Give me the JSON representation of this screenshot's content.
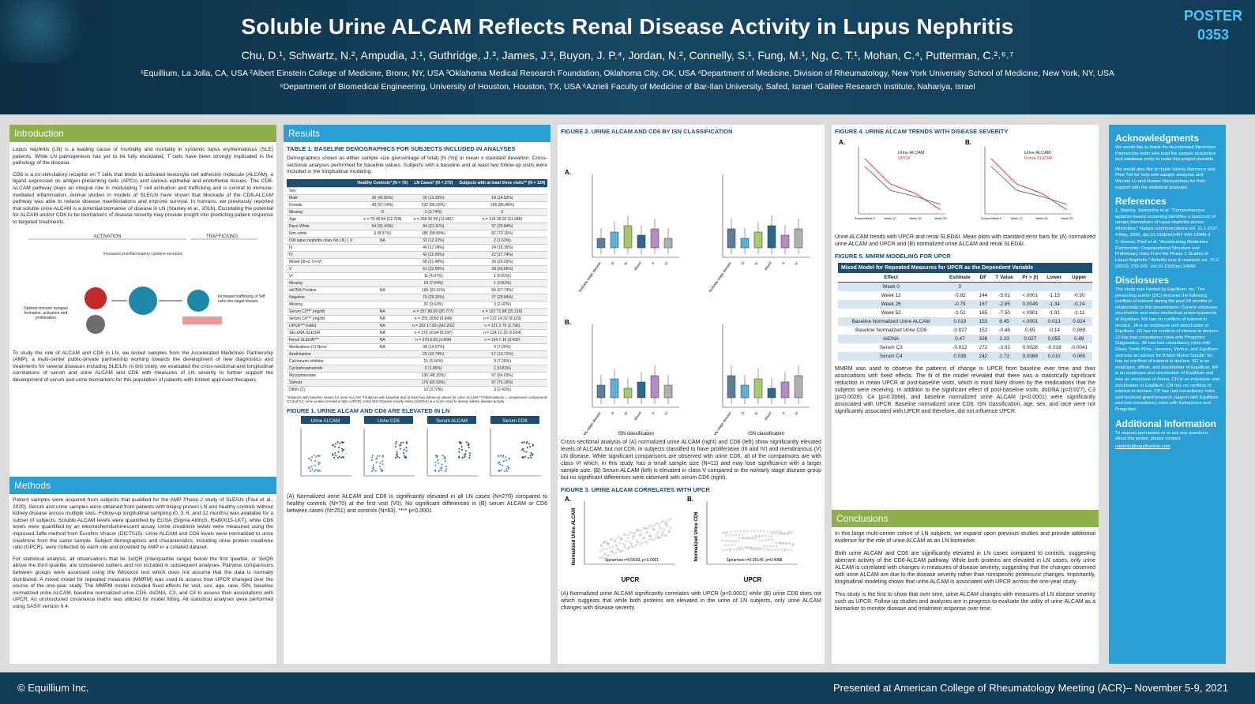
{
  "header": {
    "title": "Soluble Urine ALCAM Reflects Renal Disease Activity in Lupus Nephritis",
    "authors": "Chu, D.¹, Schwartz, N.², Ampudia, J.¹, Guthridge, J.³, James, J.³, Buyon, J. P.⁴, Jordan, N.², Connelly, S.¹, Fung, M.¹, Ng, C. T.¹, Mohan, C.⁴, Putterman, C.²˒⁶˒⁷",
    "affil_line1": "¹Equillium, La Jolla, CA, USA   ²Albert Einstein College of Medicine, Bronx, NY, USA   ³Oklahoma Medical Research Foundation, Oklahoma City, OK, USA   ⁴Department of Medicine, Division of Rheumatology, New York University School of Medicine, New York, NY, USA",
    "affil_line2": "⁵Department of Biomedical Engineering, University of Houston, Houston, TX, USA   ⁶Azrieli Faculty of Medicine of Bar-Ilan University, Safed, Israel   ⁷Galilee Research Institute, Nahariya, Israel",
    "poster_label": "POSTER",
    "poster_number": "0353"
  },
  "intro": {
    "heading": "Introduction",
    "p1": "Lupus nephritis (LN) is a leading cause of morbidity and mortality in systemic lupus erythematosus (SLE) patients. While LN pathogenesis has yet to be fully elucidated, T cells have been strongly implicated in the pathology of the disease.",
    "p2": "CD6 is a co-stimulatory receptor on T cells that binds to activated leukocyte cell adhesion molecule (ALCAM), a ligand expressed on antigen presenting cells (APCs) and various epithelial and endothelial tissues. The CD6-ALCAM pathway plays an integral role in modulating T cell activation and trafficking and is central to immune-mediated inflammation. Animal studies in models of SLE/LN have shown that blockade of the CD6-ALCAM pathway was able to reduce disease manifestations and improve survival. In humans, we previously reported that soluble urine ALCAM is a potential biomarker of disease in LN (Stanley et al., 2016). Elucidating the potential for ALCAM and/or CD6 to be biomarkers of disease severity may provide insight into predicting patient response to targeted treatments.",
    "diagram_activation": "ACTIVATION",
    "diagram_trafficking": "TRAFFICKING",
    "diagram_cytokine": "Increased proinflammatory cytokine secretion",
    "diagram_optimal": "Optimal immune synapse formation, activation and proliferation",
    "diagram_trafficking_text": "Increased trafficking of Teff cells into target tissues",
    "p3": "To study the role of ALCAM and CD6 in LN, we tested samples from the Accelerated Medicines Partnership (AMP), a multi-center public-private partnership working towards the development of new diagnostics and treatments for several diseases including SLE/LN. In this study, we evaluated the cross-sectional and longitudinal correlations of serum and urine ALCAM and CD6 with measures of LN severity to further support the development of serum and urine biomarkers for this population of patients with limited approved therapies."
  },
  "methods": {
    "heading": "Methods",
    "p1": "Patient samples were acquired from subjects that qualified for the AMP Phase 2 study of SLE/LN (Paul et al., 2020). Serum and urine samples were obtained from patients with biopsy proven LN and healthy controls without kidney disease across multiple sites. Follow-up longitudinal sampling (0, 3, 6, and 12 months) was available for a subset of subjects. Soluble ALCAM levels were quantified by ELISA (Sigma Aldrich, RAB0013-1KT), while CD6 levels were quantified by an electrochemiluminescent assay. Urine creatinine levels were measured using the improved Jaffe method from Eurofins Viracor (DICT015). Urine ALCAM and CD6 levels were normalized to urine creatinine from the same sample. Subject demographics and characteristics, including urine protein creatinine ratio (UPCR), were collected by each site and provided by AMP in a collated dataset.",
    "p2": "For statistical analysis, all observations that lie 3xIQR (interquartile range) below the first quartile, or 3xIQR above the third quartile, are considered outliers and not included in subsequent analyses. Pairwise comparisons between groups were assessed using the Wilcoxon test which does not assume that the data is normally distributed. A mixed model for repeated measures (MMRM) was used to assess how UPCR changed over the course of the one-year study. The MMRM model included fixed effects for visit, sex, age, race, ISN, baseline normalized urine ALCAM, baseline normalized urine CD6, dsDNA, C3, and C4 to assess their associations with UPCR. An unstructured covariance matrix was utilized for model fitting. All statistical analyses were performed using SAS® version 9.4."
  },
  "results": {
    "heading": "Results",
    "table1_title": "TABLE 1. BASELINE DEMOGRAPHICS FOR SUBJECTS INCLUDED IN ANALYSES",
    "table1_caption": "Demographics shown as either sample size (percentage of total) [N (%)] or mean ± standard deviation. Cross-sectional analyses performed for baseline values. Subjects with a baseline and at least two follow-up visits were included in the longitudinal modeling.",
    "table1_headers": [
      "",
      "Healthy Controls* (N = 70)",
      "LN Cases* (N = 270)",
      "Subjects with at least three visits** (N = 124)"
    ],
    "table1_rows": [
      [
        "Sex",
        "",
        "",
        ""
      ],
      [
        "Male",
        "30 (42.86%)",
        "36 (13.33%)",
        "18 (14.52%)"
      ],
      [
        "Female",
        "40 (57.14%)",
        "232 (85.93%)",
        "106 (85.48%)"
      ],
      [
        "Missing",
        "0",
        "2 (0.74%)",
        "0"
      ],
      [
        "Age",
        "n = 70  46.64 (12.218)",
        "n = 268  36.99 (11.981)",
        "n = 124  36.02 (11.048)"
      ],
      [
        "Race  White",
        "64 (91.43%)",
        "84 (31.11%)",
        "37 (29.84%)"
      ],
      [
        "Non-white",
        "6 (8.57%)",
        "186 (68.89%)",
        "87 (70.16%)"
      ],
      [
        "ISN lupus nephritis class  No LN, I, II",
        "NA",
        "33 (12.22%)",
        "2 (1.61%)"
      ],
      [
        "III",
        "",
        "46 (17.04%)",
        "24 (19.35%)"
      ],
      [
        "IV",
        "",
        "42 (15.56%)",
        "22 (17.74%)"
      ],
      [
        "Mixed (III+V, IV+V)",
        "",
        "58 (21.48%)",
        "36 (29.03%)"
      ],
      [
        "V",
        "",
        "61 (22.59%)",
        "38 (30.65%)"
      ],
      [
        "VI",
        "",
        "11 (4.07%)",
        "1 (0.81%)"
      ],
      [
        "Missing",
        "",
        "19 (7.04%)",
        "1 (0.81%)"
      ],
      [
        "dsDNA  Positive",
        "NA",
        "165 (61.11%)",
        "84 (67.74%)"
      ],
      [
        "Negative",
        "",
        "79 (29.26%)",
        "37 (29.84%)"
      ],
      [
        "Missing",
        "",
        "26 (9.63%)",
        "3 (2.42%)"
      ],
      [
        "Serum C3*** (mg/dl)",
        "NA",
        "n = 257  80.06 (25.777)",
        "n = 122  72.88 (25.218)"
      ],
      [
        "Serum C4*** (mg/dl)",
        "NA",
        "n = 255  15.80 (9.849)",
        "n = 122  14.22 (9.120)"
      ],
      [
        "UPCR*** (ratio)",
        "NA",
        "n = 262  17.83 (242.202)",
        "n = 121  2.76 (2.796)"
      ],
      [
        "SELENA-SLEDAI",
        "NA",
        "n = 270  10.94 (6.037)",
        "n = 124  12.16 (5.934)"
      ],
      [
        "Renal SLEDAI***",
        "NA",
        "n = 270  6.65 (3.604)",
        "n = 124  7.16 (3.432)"
      ],
      [
        "Medications (1)  None",
        "NA",
        "38 (14.07%)",
        "9 (7.26%)"
      ],
      [
        "Azathioprine",
        "",
        "29 (10.74%)",
        "17 (13.71%)"
      ],
      [
        "Calcineurin inhibitor",
        "",
        "15 (5.56%)",
        "9 (7.26%)"
      ],
      [
        "Cyclophosphamide",
        "",
        "5 (1.85%)",
        "1 (0.81%)"
      ],
      [
        "Mycophenolate",
        "",
        "130 (48.15%)",
        "67 (54.03%)"
      ],
      [
        "Steroid",
        "",
        "178 (65.93%)",
        "87 (70.16%)"
      ],
      [
        "Other (2)",
        "",
        "10 (3.70%)",
        "3 (2.42%)"
      ]
    ],
    "table1_footnote": "*Subjects with baseline values for urine ALCAM  **Subjects with baseline and at least two follow-up values for urine ALCAM  ***Abbreviations = complement components C3 and C4, urine protein creatinine ratio (UPCR), renal SLE Disease Activity Index (SLEDAI) is a score used to assess kidney disease activity.",
    "fig1_title": "FIGURE 1. URINE ALCAM AND CD6 ARE ELEVATED IN LN",
    "fig1_labels": [
      "Urine ALCAM",
      "Urine CD6",
      "Serum ALCAM",
      "Serum CD6"
    ],
    "fig1_caption": "(A) Normalized urine ALCAM and CD6 is significantly elevated in all LN cases (N=270) compared to healthy controls (N=70) at the first visit (V0). No significant differences in (B) serum ALCAM or CD6 between cases (N=251) and controls (N=63). **** p<0.0001",
    "fig2_title": "FIGURE 2. URINE ALCAM AND CD6 BY ISN CLASSIFICATION",
    "fig2_caption": "Cross-sectional analysis of (A) normalized urine ALCAM (right) and CD6 (left) show significantly elevated levels of ALCAM, but not CD6, in subjects classified to have proliferative (III and IV) and membranous (V) LN disease. While significant comparisons are observed with urine CD6, all of the comparisons are with class VI which, in this study, has a small sample size (N=11) and may lose significance with a larger sample size. (B) Serum ALCAM (left) is elevated in class V compared to the no/early stage disease group but no significant differences were observed with serum CD6 (right).",
    "fig2_xlabel": "ISN classification",
    "fig2_categories": [
      "No/Early stage disease",
      "III",
      "IV",
      "Mixed",
      "V",
      "VI"
    ],
    "fig3_title": "FIGURE 3. URINE ALCAM CORRELATES WITH UPCR",
    "fig3_caption": "(A) Normalized urine ALCAM significantly correlates with UPCR (p<0.0001) while (B) urine CD6 does not which suggests that while both proteins are elevated in the urine of LN subjects, only urine ALCAM changes with disease severity.",
    "fig3a_stat": "Spearman r=0.5603, p<0.0001",
    "fig3b_stat": "Spearman r=0.05146, p=0.4088",
    "fig3_xlabel": "UPCR",
    "fig3a_ylabel": "Normalized Urine ALCAM",
    "fig3b_ylabel": "Normalized Urine CD6",
    "fig4_title": "FIGURE 4. URINE ALCAM TRENDS WITH DISEASE SEVERITY",
    "fig4a_legend": [
      "Urine ALCAM",
      "UPCR"
    ],
    "fig4b_legend": [
      "Urine ALCAM",
      "Renal SLEDAI"
    ],
    "fig4_x": [
      "Screen/Week 0",
      "Week 12",
      "Week 26",
      "Week 52"
    ],
    "fig4_caption": "Urine ALCAM trends with UPCR and renal SLEDAI. Mean plots with standard error bars for (A) normalized urine ALCAM and UPCR and (B) normalized urine ALCAM and renal SLEDAI.",
    "fig5_title": "FIGURE 5. MMRM MODELING FOR UPCR",
    "mmrm_title": "Mixed Model for Repeated Measures for UPCR as the Dependent Variable",
    "mmrm_headers": [
      "Effect",
      "Estimate",
      "DF",
      "T Value",
      "Pr > |t|",
      "Lower",
      "Upper"
    ],
    "mmrm_rows": [
      [
        "Week 0",
        "0",
        "",
        "",
        "",
        "",
        ""
      ],
      [
        "Week 12",
        "-0.82",
        "144",
        "-5.01",
        "<.0001",
        "-1.15",
        "-0.50"
      ],
      [
        "Week 26",
        "-0.79",
        "167",
        "-2.85",
        "0.0049",
        "-1.34",
        "-0.24"
      ],
      [
        "Week 52",
        "-1.51",
        "165",
        "-7.50",
        "<.0001",
        "-1.91",
        "-1.11"
      ],
      [
        "Baseline Normalized Urine ALCAM",
        "0.019",
        "153",
        "6.45",
        "<.0001",
        "0.013",
        "0.024"
      ],
      [
        "Baseline Normalized Urine CD6",
        "-0.027",
        "152",
        "-0.46",
        "0.65",
        "-0.14",
        "0.089"
      ],
      [
        "dsDNA",
        "0.47",
        "326",
        "2.23",
        "0.027",
        "0.055",
        "0.89"
      ],
      [
        "Serum C3",
        "-0.012",
        "272",
        "-3.02",
        "0.0028",
        "-0.019",
        "-0.0041"
      ],
      [
        "Serum C4",
        "0.038",
        "242",
        "2.73",
        "0.0068",
        "0.010",
        "0.065"
      ]
    ],
    "fig5_caption": "MMRM was used to observe the patterns of change in UPCR from baseline over time and their associations with fixed effects. The fit of the model revealed that there was a statistically significant reduction in mean UPCR at post-baseline visits, which is most likely driven by the medications that the subjects were receiving. In addition to the significant effect of post-baseline visits, dsDNA (p=0.027), C3 (p=0.0028), C4 (p=0.0068), and baseline normalized urine ALCAM (p<0.0001) were significantly associated with UPCR. Baseline normalized urine CD6, ISN classification, age, sex, and race were not significantly associated with UPCR and therefore, did not influence UPCR."
  },
  "conclusions": {
    "heading": "Conclusions",
    "p1": "In this large multi-center cohort of LN subjects, we expand upon previous studies and provide additional evidence for the role of urine ALCAM as an LN biomarker.",
    "p2": "Both urine ALCAM and CD6 are significantly elevated in LN cases compared to controls, suggesting aberrant activity of the CD6-ALCAM pathway. While both proteins are elevated in LN cases, only urine ALCAM is correlated with changes in measures of disease severity, suggesting that the changes observed with urine ALCAM are due to the disease severity rather than nonspecific proteinuric changes. Importantly, longitudinal modeling shows that urine ALCAM is associated with UPCR across the one-year study.",
    "p3": "This study is the first to show that over time, urine ALCAM changes with measures of LN disease severity such as UPCR. Follow-up studies and analyses are in progress to evaluate the utility of urine ALCAM as a biomarker to monitor disease and treatment response over time."
  },
  "side": {
    "ack_heading": "Acknowledgments",
    "ack1": "We would like to thank the Accelerated Medicines Partnership team who lead the sample acquisition and database entry to make this project possible.",
    "ack2": "We would also like to thank Valeria Marrocco and Phoi Tiet for help with sample analyses and Wenxin Lu and Huwan Narayankara for their support with the statistical analyses.",
    "ref_heading": "References",
    "ref1": "1. Stanley, Samantha et al. \"Comprehensive aptamer-based screening identifies a spectrum of urinary biomarkers of lupus nephritis across ethnicities.\" Nature communications vol. 11,1 2197. 4 May. 2020, doi:10.1038/s41467-020-15986-3",
    "ref2": "2. Hoover, Paul et al. \"Accelerating Medicines Partnership: Organizational Structure and Preliminary Data From the Phase 1 Studies of Lupus Nephritis.\" Arthritis care & research vol. 72,2 (2020): 233-242. doi:10.1002/acr.24066",
    "disc_heading": "Disclosures",
    "disc": "The study was funded by Equillium, Inc. The presenting author (DC) declares the following conflicts of interest during the past 24 months in relationship to this presentation: Current employee, stockholder and owns intellectual property/patents of Equillium. NS has no conflicts of interest to declare. JA is an employee and stockholder of Equillium. JG has no conflicts of interest to declare. JJ has had consultancy roles with Progentec Diagnostics. JB has had consultancy roles with Glaxo Smith Kline, Janssen, Ventus, and Equillium and was an advisor for Bristol Myers Squibb. NJ has no conflicts of interest to declare. SC is an employee, officer, and stockholder of Equillium. MF is an employee and stockholder of Equillium and was an employee of Arena. CN is an employee and stockholder of Equillium. CM has no conflicts of interest to declare. CP has had consultancy roles and received grant/research support with Equillium and has consultancy roles with Kidneycure and Progentec.",
    "info_heading": "Additional Information",
    "info": "To request permission or to ask any questions about the poster, please contact",
    "email": "medinfo@equilliumbio.com"
  },
  "footer": {
    "left": "© Equillium Inc.",
    "right": "Presented at American College of Rheumatology Meeting (ACR)– November 5-9, 2021"
  },
  "colors": {
    "header": "#123d58",
    "green": "#8db04a",
    "blue": "#2a9fd6",
    "navy": "#1d4f73",
    "red": "#e53935"
  }
}
